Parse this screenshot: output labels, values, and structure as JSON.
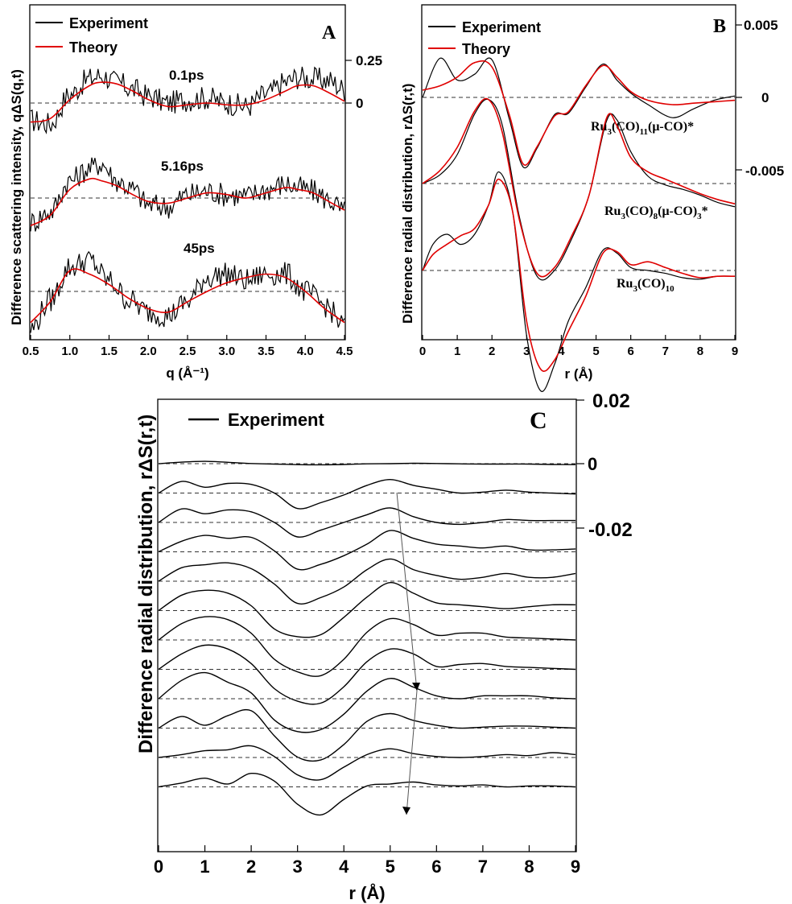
{
  "colors": {
    "experiment": "#000000",
    "theory": "#e00000",
    "baseline": "#333333"
  },
  "chart_data": [
    {
      "panel": "A",
      "type": "line",
      "xlabel": "q (Å⁻¹)",
      "ylabel": "Difference scattering intensity, qΔS(q,t)",
      "xlim": [
        0.5,
        4.5
      ],
      "xticks": [
        "0.5",
        "1.0",
        "1.5",
        "2.0",
        "2.5",
        "3.0",
        "3.5",
        "4.0",
        "4.5"
      ],
      "right_axis_ticks": [
        "0.25",
        "0"
      ],
      "legend": [
        "Experiment",
        "Theory"
      ],
      "legend_position": "top-left",
      "series": [
        {
          "label": "0.1ps",
          "x": [
            0.5,
            0.75,
            1.0,
            1.25,
            1.4,
            1.6,
            1.8,
            2.0,
            2.25,
            2.5,
            2.75,
            3.0,
            3.25,
            3.5,
            3.75,
            3.9,
            4.1,
            4.3,
            4.5
          ],
          "theory": [
            -0.11,
            -0.09,
            0.02,
            0.1,
            0.12,
            0.11,
            0.07,
            0.02,
            -0.02,
            -0.01,
            0.0,
            -0.01,
            -0.01,
            0.02,
            0.07,
            0.1,
            0.1,
            0.06,
            0.01
          ],
          "experiment": [
            -0.1,
            -0.12,
            0.05,
            0.14,
            0.16,
            0.12,
            0.08,
            0.04,
            0.0,
            0.02,
            0.03,
            0.0,
            -0.02,
            0.05,
            0.12,
            0.15,
            0.14,
            0.13,
            0.08
          ]
        },
        {
          "label": "5.16ps",
          "x": [
            0.5,
            0.75,
            1.0,
            1.25,
            1.4,
            1.6,
            1.8,
            2.0,
            2.25,
            2.5,
            2.75,
            3.0,
            3.25,
            3.5,
            3.75,
            3.9,
            4.1,
            4.3,
            4.5
          ],
          "theory": [
            -0.16,
            -0.1,
            0.05,
            0.11,
            0.1,
            0.07,
            0.02,
            -0.02,
            -0.03,
            0.0,
            0.03,
            0.02,
            0.0,
            0.03,
            0.06,
            0.05,
            0.03,
            -0.02,
            -0.07
          ],
          "experiment": [
            -0.14,
            -0.08,
            0.1,
            0.17,
            0.2,
            0.1,
            0.05,
            -0.04,
            -0.05,
            0.02,
            0.04,
            0.02,
            0.01,
            0.05,
            0.08,
            0.06,
            0.04,
            -0.01,
            -0.08
          ]
        },
        {
          "label": "45ps",
          "x": [
            0.5,
            0.75,
            1.0,
            1.25,
            1.5,
            1.75,
            2.0,
            2.25,
            2.5,
            2.75,
            3.0,
            3.25,
            3.5,
            3.75,
            4.0,
            4.25,
            4.5
          ],
          "theory": [
            -0.18,
            -0.06,
            0.12,
            0.1,
            0.04,
            -0.04,
            -0.1,
            -0.12,
            -0.06,
            0.0,
            0.05,
            0.08,
            0.1,
            0.08,
            0.0,
            -0.1,
            -0.18
          ],
          "experiment": [
            -0.22,
            -0.05,
            0.14,
            0.18,
            0.06,
            -0.05,
            -0.12,
            -0.14,
            -0.06,
            0.08,
            0.1,
            0.06,
            0.1,
            0.1,
            0.0,
            -0.08,
            -0.2
          ]
        }
      ]
    },
    {
      "panel": "B",
      "type": "line",
      "xlabel": "r (Å)",
      "ylabel": "Difference radial distribution, rΔS(r,t)",
      "xlim": [
        0,
        9
      ],
      "xticks": [
        "0",
        "1",
        "2",
        "3",
        "4",
        "5",
        "6",
        "7",
        "8",
        "9"
      ],
      "right_axis_ticks": [
        "0.005",
        "0",
        "-0.005"
      ],
      "legend": [
        "Experiment",
        "Theory"
      ],
      "legend_position": "top-left",
      "series": [
        {
          "label_parts": [
            "Ru",
            "3",
            "(CO)",
            "11",
            "(μ-CO)*"
          ],
          "x": [
            0,
            0.5,
            1.0,
            1.5,
            2.0,
            2.5,
            2.9,
            3.3,
            3.8,
            4.2,
            4.7,
            5.2,
            5.6,
            6.0,
            6.5,
            7.2,
            7.8,
            8.4,
            9.0
          ],
          "experiment": [
            0,
            0.0027,
            0.0012,
            0.0016,
            0.0026,
            -0.0015,
            -0.0048,
            -0.0035,
            -0.0012,
            -0.0011,
            0.0007,
            0.0023,
            0.0012,
            0.0003,
            -0.0005,
            -0.0014,
            -0.0008,
            -0.0002,
            0.0001
          ],
          "theory": [
            0.0005,
            0.0008,
            0.0014,
            0.0024,
            0.0021,
            -0.0012,
            -0.0046,
            -0.0034,
            -0.0013,
            -0.001,
            0.0008,
            0.0022,
            0.0014,
            0.0004,
            -0.0002,
            -0.0005,
            -0.0004,
            -0.0003,
            -0.0002
          ]
        },
        {
          "label_parts": [
            "Ru",
            "3",
            "(CO)",
            "8",
            "(μ-CO)",
            "3",
            "*"
          ],
          "x": [
            0,
            0.5,
            1.0,
            1.5,
            1.9,
            2.3,
            2.8,
            3.3,
            3.8,
            4.3,
            4.8,
            5.3,
            5.6,
            6.0,
            6.5,
            7.0,
            7.5,
            8.0,
            8.5,
            9.0
          ],
          "experiment": [
            0,
            0.0006,
            0.002,
            0.0048,
            0.0058,
            0.004,
            -0.0024,
            -0.0064,
            -0.006,
            -0.0038,
            -0.0008,
            0.0043,
            0.0044,
            0.0022,
            0.0005,
            -0.0001,
            -0.0004,
            -0.0008,
            -0.0013,
            -0.0016
          ],
          "theory": [
            0,
            0.0009,
            0.0025,
            0.005,
            0.0058,
            0.0035,
            -0.0026,
            -0.0062,
            -0.0058,
            -0.0036,
            -0.0008,
            0.0045,
            0.004,
            0.0018,
            0.0008,
            0.0003,
            -0.0002,
            -0.0007,
            -0.0011,
            -0.0014
          ]
        },
        {
          "label_parts": [
            "Ru",
            "3",
            "(CO)",
            "10"
          ],
          "x": [
            0,
            0.3,
            0.7,
            1.1,
            1.5,
            1.9,
            2.2,
            2.6,
            3.0,
            3.4,
            3.8,
            4.2,
            4.7,
            5.2,
            5.6,
            6.0,
            6.5,
            7.0,
            7.5,
            8.0,
            8.5,
            9.0
          ],
          "experiment": [
            0,
            0.0018,
            0.0025,
            0.0018,
            0.0025,
            0.0045,
            0.0068,
            0.004,
            -0.0045,
            -0.0083,
            -0.0065,
            -0.0035,
            -0.0012,
            0.0014,
            0.0012,
            0.0002,
            0.0,
            -0.0002,
            -0.0005,
            -0.0006,
            -0.0004,
            -0.0004
          ],
          "theory": [
            0,
            0.0011,
            0.0018,
            0.0024,
            0.0029,
            0.0045,
            0.0063,
            0.004,
            -0.0035,
            -0.0068,
            -0.0062,
            -0.0042,
            -0.0018,
            0.0012,
            0.0013,
            0.0004,
            0.0006,
            0.0002,
            -0.0002,
            -0.0005,
            -0.0004,
            -0.0004
          ]
        }
      ]
    },
    {
      "panel": "C",
      "type": "line",
      "xlabel": "r (Å)",
      "ylabel": "Difference radial distribution, rΔS(r,t)",
      "xlim": [
        0,
        9
      ],
      "xticks": [
        "0",
        "1",
        "2",
        "3",
        "4",
        "5",
        "6",
        "7",
        "8",
        "9"
      ],
      "right_axis_ticks": [
        "0.02",
        "0",
        "-0.02"
      ],
      "legend": [
        "Experiment"
      ],
      "legend_position": "top-left",
      "x": [
        0,
        0.5,
        1.0,
        1.5,
        2.0,
        2.5,
        3.0,
        3.5,
        4.0,
        4.5,
        5.0,
        5.5,
        6.0,
        6.5,
        7.0,
        7.5,
        8.0,
        8.5,
        9.0
      ],
      "series": [
        {
          "values": [
            0,
            0.0008,
            0.0012,
            0.0007,
            0.0001,
            -0.0002,
            -0.0005,
            -0.0006,
            -0.0004,
            -0.0001,
            0.0,
            0.0002,
            0.0001,
            -0.0001,
            -0.0002,
            -0.0002,
            -0.0002,
            -0.0004,
            -0.0005
          ]
        },
        {
          "values": [
            0,
            0.006,
            0.003,
            0.005,
            0.0045,
            0.0,
            -0.008,
            -0.005,
            -0.001,
            0.004,
            0.007,
            0.004,
            0.002,
            0.0,
            0.0005,
            0.0015,
            0.0005,
            0.0,
            -0.0005
          ]
        },
        {
          "values": [
            0,
            0.007,
            0.0045,
            0.0065,
            0.0055,
            0.0,
            -0.0075,
            -0.004,
            0.0,
            0.004,
            0.0075,
            0.003,
            0.0,
            -0.001,
            0.0,
            0.0015,
            0.001,
            0.001,
            0.001
          ]
        },
        {
          "values": [
            0,
            0.0055,
            0.0085,
            0.007,
            0.0075,
            0.0005,
            -0.009,
            -0.0065,
            -0.002,
            0.004,
            0.011,
            0.007,
            0.004,
            0.003,
            0.002,
            0.003,
            0.001,
            0.001,
            0.0015
          ]
        },
        {
          "values": [
            0,
            0.007,
            0.0085,
            0.0095,
            0.0065,
            -0.0015,
            -0.0115,
            -0.0085,
            -0.003,
            0.006,
            0.0115,
            0.006,
            0.003,
            0.001,
            0.002,
            0.004,
            0.002,
            0.002,
            0.004
          ]
        },
        {
          "values": [
            0,
            0.008,
            0.0105,
            0.009,
            0.0025,
            -0.0095,
            -0.0135,
            -0.0125,
            -0.0035,
            0.007,
            0.0145,
            0.009,
            0.004,
            0.003,
            0.002,
            0.001,
            0.002,
            0.003,
            0.003
          ]
        },
        {
          "values": [
            0,
            0.0085,
            0.012,
            0.0105,
            0.0035,
            -0.01,
            -0.0165,
            -0.0185,
            -0.01,
            0.004,
            0.011,
            0.008,
            0.0025,
            0.0035,
            0.0035,
            0.0015,
            0.001,
            0.0005,
            0.0
          ]
        },
        {
          "values": [
            0,
            0.008,
            0.0125,
            0.0105,
            0.003,
            -0.01,
            -0.0165,
            -0.0175,
            -0.009,
            0.004,
            0.0105,
            0.008,
            0.0015,
            0.0025,
            0.003,
            0.0015,
            0.001,
            0.0005,
            0.0
          ]
        },
        {
          "values": [
            0,
            0.0095,
            0.0135,
            0.0085,
            0.003,
            -0.011,
            -0.017,
            -0.016,
            -0.008,
            0.004,
            0.0105,
            0.006,
            0.0015,
            0.0,
            0.0015,
            0.0015,
            0.0015,
            0.0005,
            0.0
          ]
        },
        {
          "values": [
            0,
            0.006,
            0.0015,
            0.0065,
            0.009,
            -0.004,
            -0.015,
            -0.0165,
            -0.0085,
            0.0035,
            0.0075,
            0.004,
            0.0015,
            0.0,
            0.0005,
            0.001,
            0.001,
            0.0005,
            0.0
          ]
        },
        {
          "values": [
            0,
            0.0015,
            0.0035,
            0.004,
            0.006,
            0.0005,
            -0.009,
            -0.0115,
            -0.005,
            0.0015,
            0.0045,
            0.002,
            0.0005,
            0.0,
            0.0005,
            0.0015,
            0.001,
            0.0025,
            0.0015
          ]
        },
        {
          "values": [
            0,
            0.002,
            0.0045,
            0.0015,
            0.007,
            0.003,
            -0.009,
            -0.0145,
            -0.0065,
            0.0005,
            0.0015,
            0.0025,
            0.001,
            0.0005,
            0.001,
            0.0,
            0.0005,
            0.0005,
            0.0
          ]
        }
      ]
    }
  ],
  "annotations": {
    "arrow_points_r": [
      5.2,
      5.5,
      5.35
    ]
  }
}
